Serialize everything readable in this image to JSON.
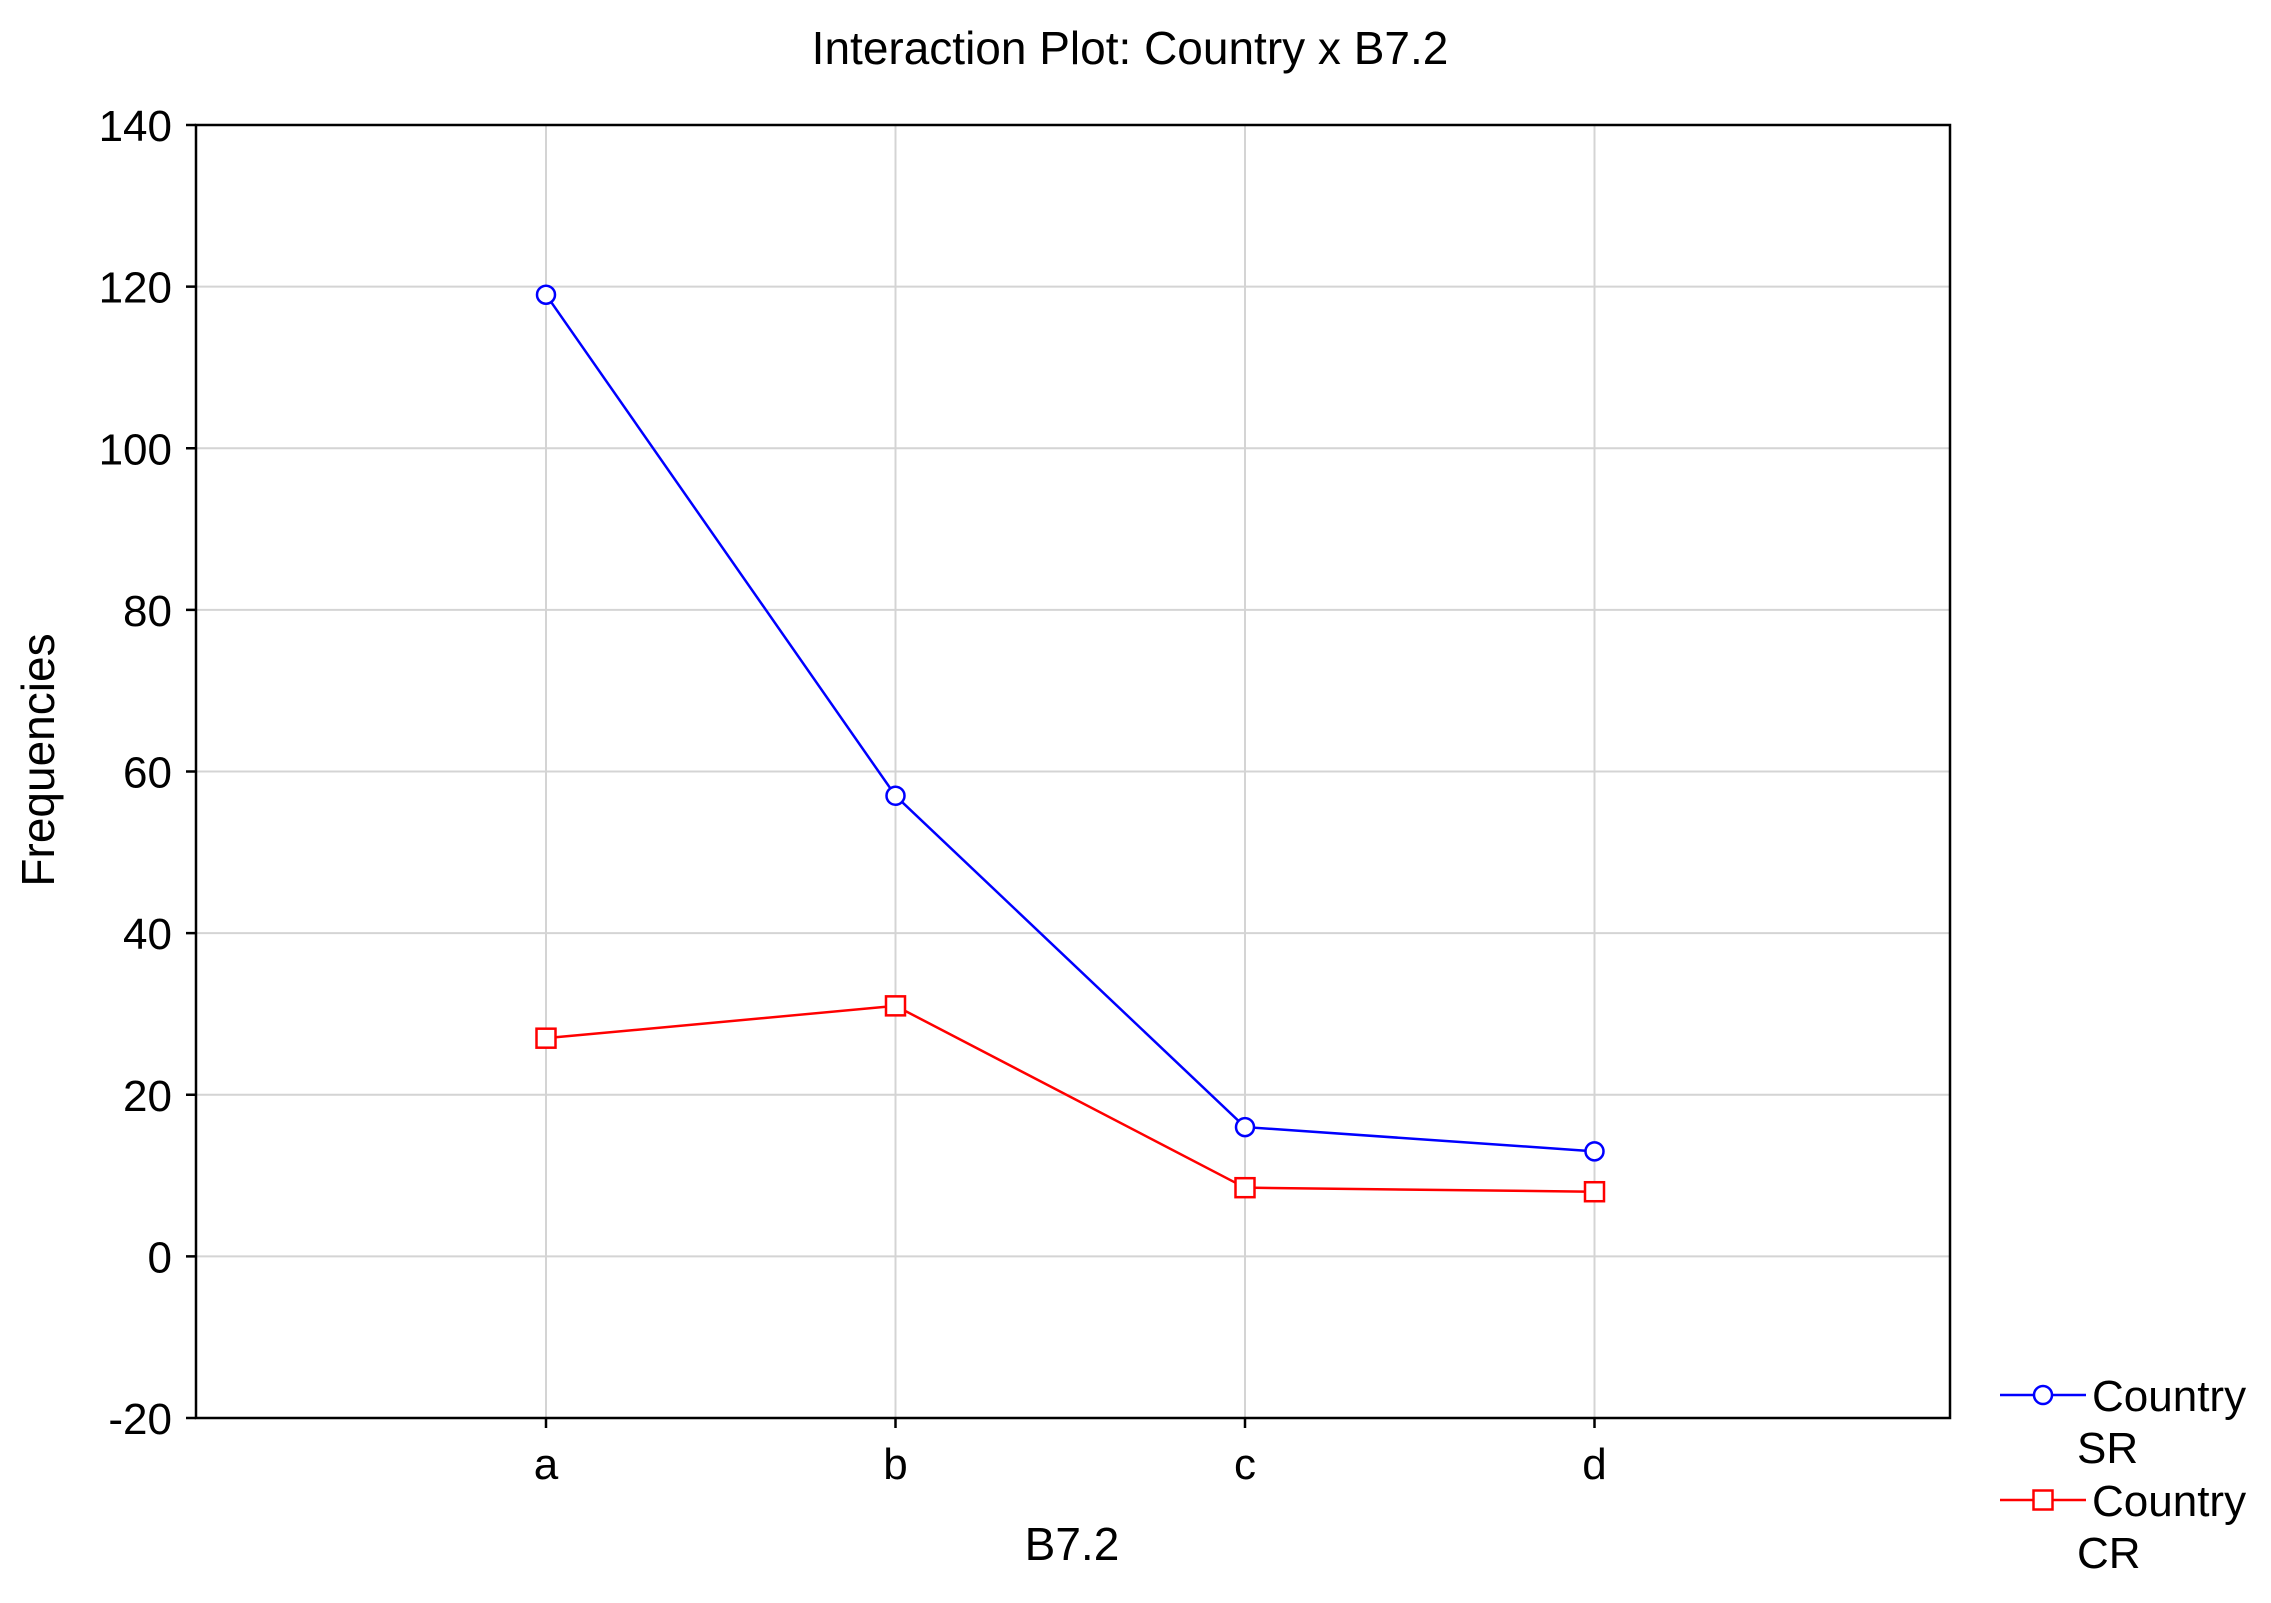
{
  "chart_data": {
    "type": "line",
    "title": "Interaction Plot: Country x B7.2",
    "xlabel": "B7.2",
    "ylabel": "Frequencies",
    "categories": [
      "a",
      "b",
      "c",
      "d"
    ],
    "ylim": [
      -20,
      140
    ],
    "yticks": [
      -20,
      0,
      20,
      40,
      60,
      80,
      100,
      120,
      140
    ],
    "grid": true,
    "legend_position": "bottom-right",
    "series": [
      {
        "name": "Country SR",
        "legend_lines": [
          "Country",
          "SR"
        ],
        "marker": "circle",
        "color": "#0000ff",
        "values": [
          119,
          57,
          16,
          13
        ]
      },
      {
        "name": "Country CR",
        "legend_lines": [
          "Country",
          "CR"
        ],
        "marker": "square",
        "color": "#ff0000",
        "values": [
          27,
          31,
          8.5,
          8
        ]
      }
    ]
  }
}
